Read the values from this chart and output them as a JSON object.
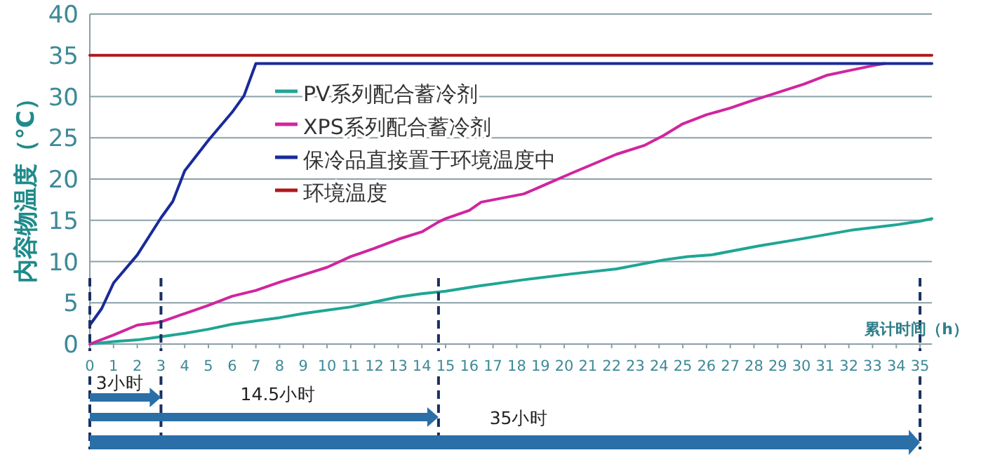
{
  "chart_data": {
    "type": "line",
    "xlabel": "累计时间（h）",
    "ylabel": "内容物温度（℃）",
    "xlim": [
      0,
      35.5
    ],
    "xticks": [
      0,
      1,
      2,
      3,
      4,
      5,
      6,
      7,
      8,
      9,
      10,
      11,
      12,
      13,
      14,
      15,
      16,
      17,
      18,
      19,
      20,
      21,
      22,
      23,
      24,
      25,
      26,
      27,
      28,
      29,
      30,
      31,
      32,
      33,
      34,
      35
    ],
    "ylim": [
      0,
      40
    ],
    "yticks": [
      0,
      5,
      10,
      15,
      20,
      25,
      30,
      35,
      40
    ],
    "grid": "y",
    "legend": "top",
    "marker": "none",
    "line_style": "solid",
    "series": [
      {
        "name": "PV系列配合蓄冷剂",
        "color": "#1fa595",
        "x": [
          0,
          1,
          2,
          3,
          4,
          5,
          6,
          7,
          8,
          9,
          10,
          11,
          12,
          13,
          14,
          15,
          16.3,
          18.3,
          20.3,
          22.2,
          24.2,
          25.2,
          26.2,
          28.2,
          30.1,
          32.1,
          34.1,
          35,
          35.5
        ],
        "values": [
          0,
          0.3,
          0.5,
          0.9,
          1.3,
          1.8,
          2.4,
          2.8,
          3.2,
          3.7,
          4.1,
          4.5,
          5.1,
          5.7,
          6.1,
          6.4,
          7.0,
          7.8,
          8.5,
          9.1,
          10.2,
          10.6,
          10.8,
          11.9,
          12.8,
          13.8,
          14.5,
          14.9,
          15.2
        ]
      },
      {
        "name": "XPS系列配合蓄冷剂",
        "color": "#d0259e",
        "x": [
          0,
          1,
          2,
          2.8,
          3,
          4,
          5,
          6,
          7,
          8,
          9,
          10,
          11,
          12,
          13,
          14,
          14.7,
          15,
          16,
          16.5,
          18.3,
          20.3,
          22.2,
          23.4,
          24.2,
          25,
          26,
          27,
          27.8,
          28.9,
          30.1,
          31.1,
          32.1,
          33.1,
          33.5
        ],
        "values": [
          0,
          1.1,
          2.3,
          2.6,
          2.7,
          3.7,
          4.7,
          5.8,
          6.5,
          7.5,
          8.4,
          9.3,
          10.6,
          11.6,
          12.7,
          13.6,
          14.8,
          15.2,
          16.2,
          17.2,
          18.2,
          20.7,
          23.0,
          24.1,
          25.3,
          26.7,
          27.8,
          28.6,
          29.4,
          30.4,
          31.5,
          32.6,
          33.2,
          33.8,
          34
        ]
      },
      {
        "name": "保冷品直接置于环境温度中",
        "color": "#1a2a9a",
        "x": [
          0,
          0.5,
          1,
          2,
          3,
          3.5,
          4,
          5,
          6,
          6.5,
          7,
          35.5
        ],
        "values": [
          2.3,
          4.3,
          7.4,
          10.8,
          15.3,
          17.3,
          21,
          24.7,
          28.1,
          30.1,
          34,
          34
        ]
      },
      {
        "name": "环境温度",
        "color": "#b01818",
        "x": [
          0,
          35.5
        ],
        "values": [
          35,
          35
        ]
      }
    ],
    "ref_lines": [
      {
        "axis": "x",
        "value": 0,
        "color": "#1a3060",
        "line_style": "dashed"
      },
      {
        "axis": "x",
        "value": 3,
        "color": "#1a3060",
        "line_style": "dashed"
      },
      {
        "axis": "x",
        "value": 14.7,
        "color": "#1a3060",
        "line_style": "dashed"
      },
      {
        "axis": "x",
        "value": 35,
        "color": "#1a3060",
        "line_style": "dashed"
      }
    ],
    "annotations": [
      "3小时",
      "14.5小时",
      "35小时"
    ]
  }
}
